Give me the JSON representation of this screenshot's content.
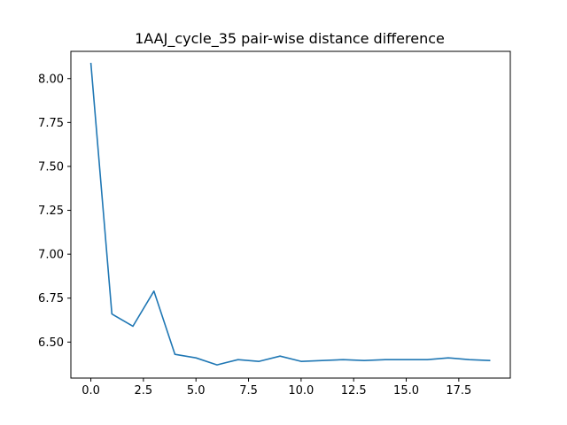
{
  "chart_data": {
    "type": "line",
    "title": "1AAJ_cycle_35 pair-wise distance difference",
    "xlabel": "",
    "ylabel": "",
    "xlim": [
      -0.95,
      19.95
    ],
    "ylim": [
      6.295,
      8.155
    ],
    "x_ticks": [
      0.0,
      2.5,
      5.0,
      7.5,
      10.0,
      12.5,
      15.0,
      17.5
    ],
    "x_tick_labels": [
      "0.0",
      "2.5",
      "5.0",
      "7.5",
      "10.0",
      "12.5",
      "15.0",
      "17.5"
    ],
    "y_ticks": [
      6.5,
      6.75,
      7.0,
      7.25,
      7.5,
      7.75,
      8.0
    ],
    "y_tick_labels": [
      "6.50",
      "6.75",
      "7.00",
      "7.25",
      "7.50",
      "7.75",
      "8.00"
    ],
    "grid": false,
    "series": [
      {
        "color": "#1f77b4",
        "x": [
          0,
          1,
          2,
          3,
          4,
          5,
          6,
          7,
          8,
          9,
          10,
          11,
          12,
          13,
          14,
          15,
          16,
          17,
          18,
          19
        ],
        "values": [
          8.09,
          6.66,
          6.59,
          6.79,
          6.43,
          6.41,
          6.37,
          6.4,
          6.39,
          6.42,
          6.39,
          6.395,
          6.4,
          6.395,
          6.4,
          6.4,
          6.4,
          6.41,
          6.4,
          6.395
        ]
      }
    ]
  }
}
